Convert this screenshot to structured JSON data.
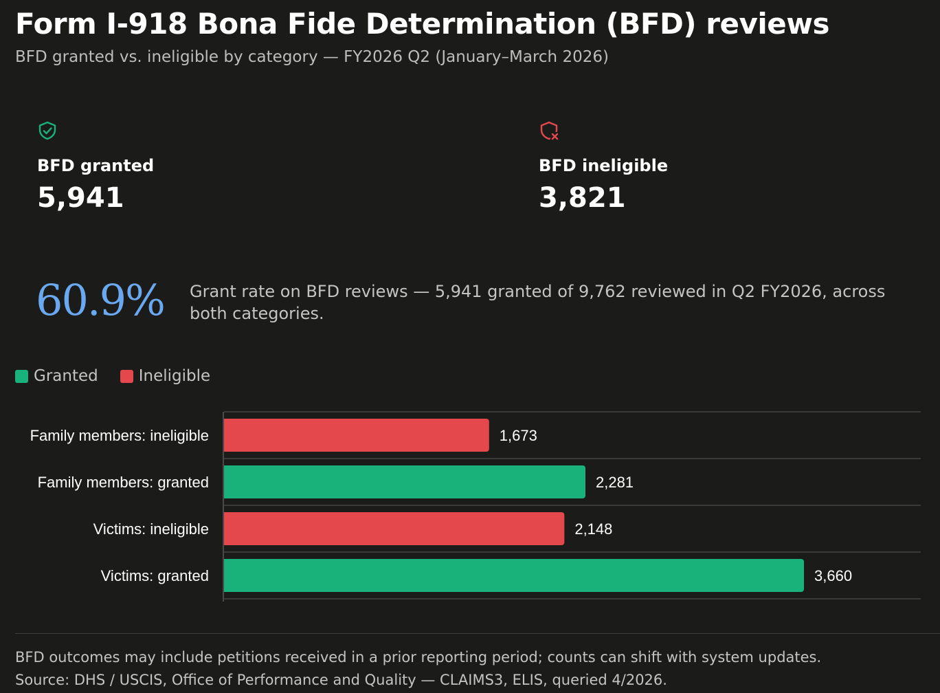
{
  "colors": {
    "granted": "#1ab27b",
    "ineligible": "#e5484c",
    "rate": "#6aa8f0",
    "background": "#1b1b1a"
  },
  "header": {
    "title": "Form I-918 Bona Fide Determination (BFD) reviews",
    "subtitle": "BFD granted vs. ineligible by category — FY2026 Q2 (January–March 2026)"
  },
  "stats": {
    "granted": {
      "icon": "shield-check-icon",
      "label": "BFD granted",
      "value": "5,941"
    },
    "ineligible": {
      "icon": "shield-x-icon",
      "label": "BFD ineligible",
      "value": "3,821"
    }
  },
  "rate": {
    "value": "60.9%",
    "description": "Grant rate on BFD reviews — 5,941 granted of 9,762 reviewed in Q2 FY2026, across both categories."
  },
  "chart_data": {
    "type": "bar",
    "orientation": "horizontal",
    "legend": [
      {
        "label": "Granted",
        "key": "granted"
      },
      {
        "label": "Ineligible",
        "key": "ineligible"
      }
    ],
    "legend_position": "top-left",
    "xlim": [
      0,
      3660
    ],
    "bars": [
      {
        "category": "Family members: ineligible",
        "value": 1673,
        "label": "1,673",
        "series": "ineligible"
      },
      {
        "category": "Family members: granted",
        "value": 2281,
        "label": "2,281",
        "series": "granted"
      },
      {
        "category": "Victims: ineligible",
        "value": 2148,
        "label": "2,148",
        "series": "ineligible"
      },
      {
        "category": "Victims: granted",
        "value": 3660,
        "label": "3,660",
        "series": "granted"
      }
    ]
  },
  "footer": {
    "note": "BFD outcomes may include petitions received in a prior reporting period; counts can shift with system updates.",
    "source": "Source: DHS / USCIS, Office of Performance and Quality — CLAIMS3, ELIS, queried 4/2026."
  }
}
